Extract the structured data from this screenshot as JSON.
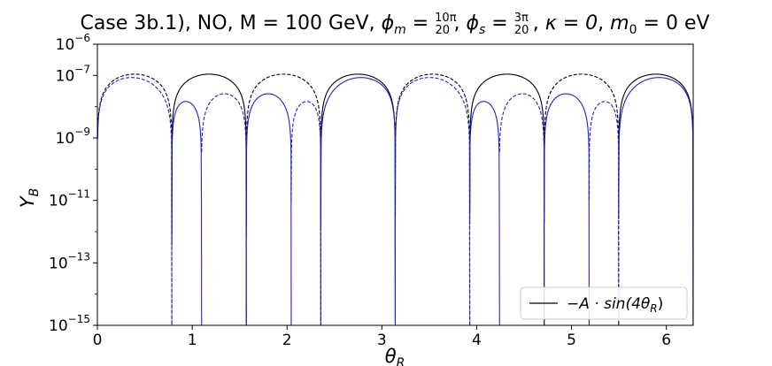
{
  "chart_data": {
    "type": "line",
    "title": "Case 3b.1), NO, M = 100 GeV, ",
    "title_math": {
      "phi_m": "ϕ",
      "phi_m_sub": "m",
      "phi_m_num": "10π",
      "phi_m_den": "20",
      "phi_s": "ϕ",
      "phi_s_sub": "s",
      "phi_s_num": "3π",
      "phi_s_den": "20",
      "kappa": "κ = 0",
      "m0": "m",
      "m0_sub": "0",
      "m0_rest": " = 0 eV"
    },
    "xlabel": "θ",
    "xlabel_sub": "R",
    "ylabel": "Y",
    "ylabel_sub": "B",
    "xlim": [
      0,
      6.2832
    ],
    "ylim_log10": [
      -15,
      -6
    ],
    "y_scale": "log",
    "x_ticks": [
      {
        "value": 0,
        "label": "0"
      },
      {
        "value": 1,
        "label": "1"
      },
      {
        "value": 2,
        "label": "2"
      },
      {
        "value": 3,
        "label": "3"
      },
      {
        "value": 4,
        "label": "4"
      },
      {
        "value": 5,
        "label": "5"
      },
      {
        "value": 6,
        "label": "6"
      }
    ],
    "y_ticks": [
      {
        "exp": -15,
        "base": "10",
        "sup": "−15"
      },
      {
        "exp": -13,
        "base": "10",
        "sup": "−13"
      },
      {
        "exp": -11,
        "base": "10",
        "sup": "−11"
      },
      {
        "exp": -9,
        "base": "10",
        "sup": "−9"
      },
      {
        "exp": -7,
        "base": "10",
        "sup": "−7"
      },
      {
        "exp": -6,
        "base": "10",
        "sup": "−6"
      }
    ],
    "legend": {
      "placement": "lower-right",
      "label_prefix": "−A · sin(4",
      "label_theta": "θ",
      "label_sub": "R",
      "label_suffix": ")"
    },
    "series": [
      {
        "name": "−A·sin(4θR)",
        "color": "#000000",
        "style": "solid",
        "formula": "abs",
        "amplitude": 1.1e-07,
        "sign_shown": "negative"
      },
      {
        "color": "#000000",
        "style": "dashed",
        "formula": "abs",
        "amplitude": 1.1e-07,
        "sign_shown": "positive"
      },
      {
        "color": "#1f1fd6",
        "style": "solid",
        "formula": "blue",
        "amplitude": 1.1e-07,
        "sign_shown": "negative"
      },
      {
        "color": "#1f1fd6",
        "style": "dashed",
        "formula": "blue",
        "amplitude": 1.1e-07,
        "sign_shown": "positive"
      }
    ],
    "grid": false
  }
}
